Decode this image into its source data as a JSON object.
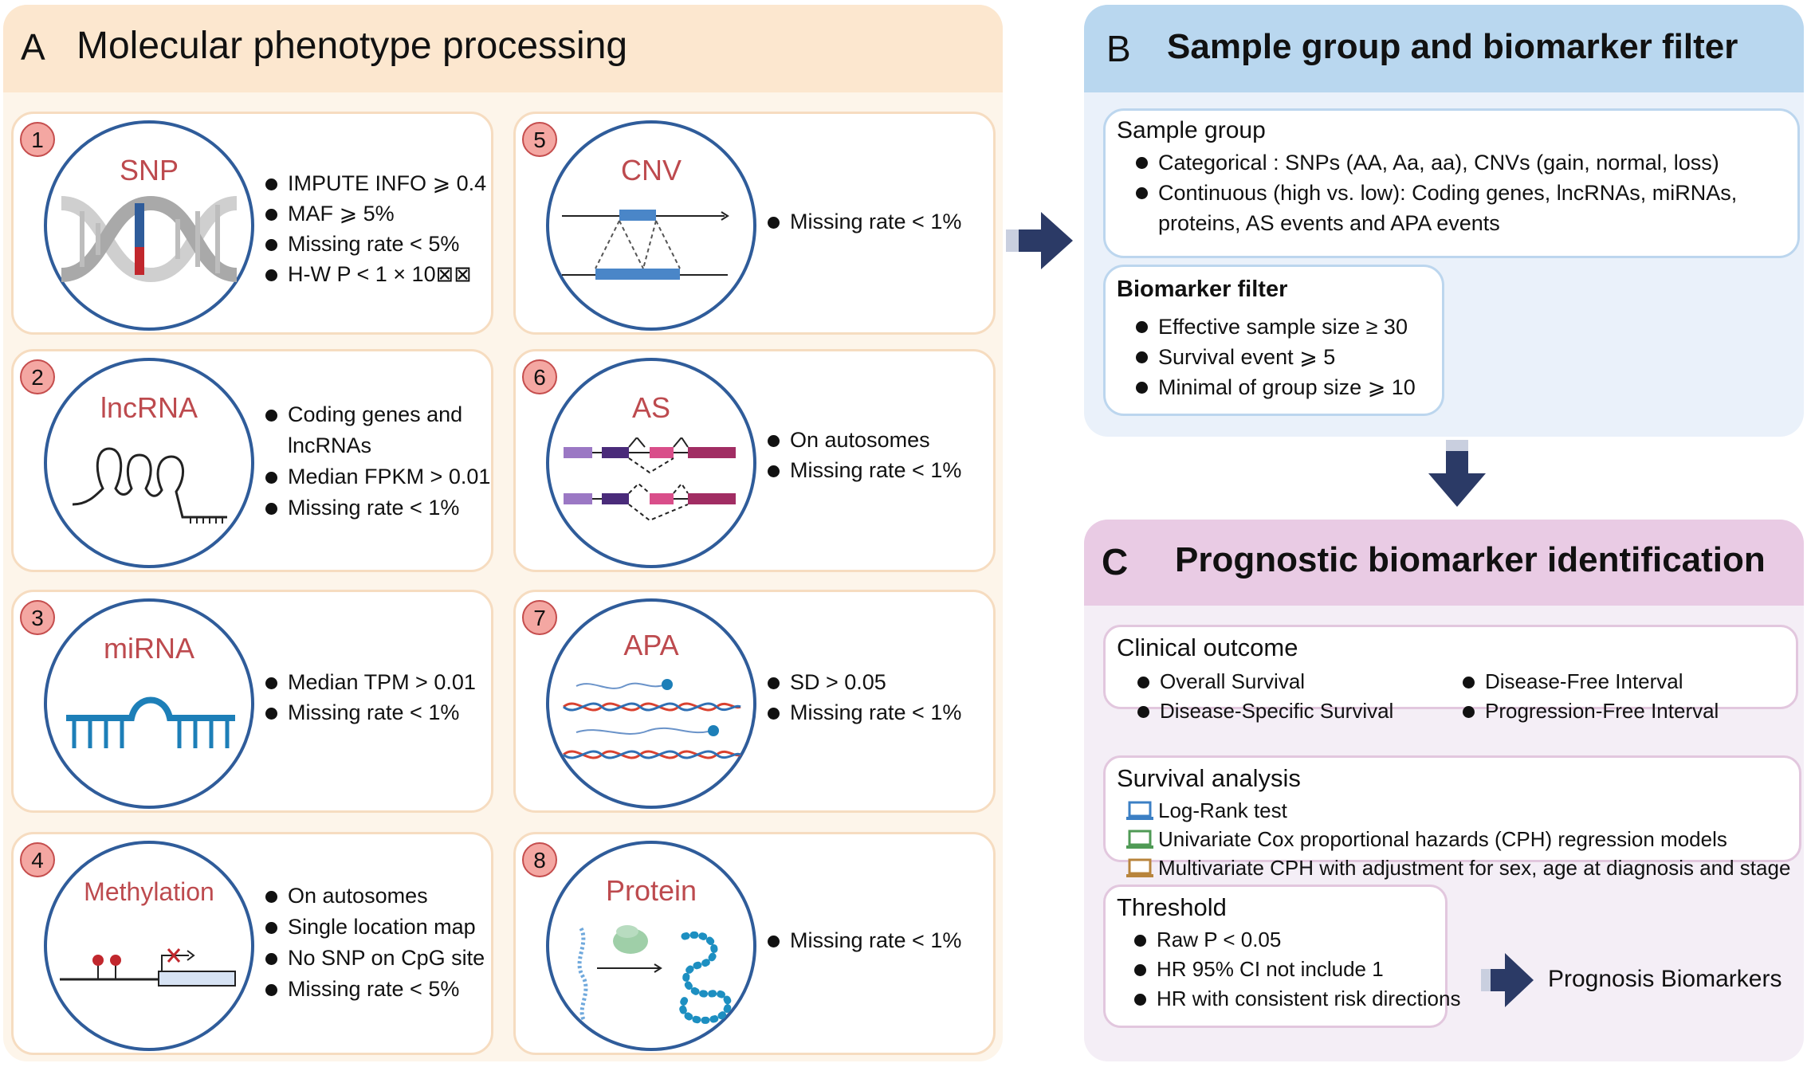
{
  "panel_a": {
    "letter": "A",
    "title": "Molecular phenotype processing",
    "cards": [
      {
        "num": "1",
        "label": "SNP",
        "bullets": [
          "IMPUTE INFO ⩾ 0.4",
          "MAF ⩾ 5%",
          "Missing rate < 5%",
          "H-W  P < 1 × 10⊠⊠"
        ]
      },
      {
        "num": "2",
        "label": "lncRNA",
        "bullets": [
          "Coding genes and",
          "lncRNAs",
          "Median FPKM > 0.01",
          "Missing rate < 1%"
        ]
      },
      {
        "num": "3",
        "label": "miRNA",
        "bullets": [
          "Median TPM > 0.01",
          "Missing rate < 1%"
        ]
      },
      {
        "num": "4",
        "label": "Methylation",
        "bullets": [
          "On autosomes",
          "Single location map",
          "No SNP on CpG site",
          "Missing rate < 5%"
        ]
      },
      {
        "num": "5",
        "label": "CNV",
        "bullets": [
          "Missing rate < 1%"
        ]
      },
      {
        "num": "6",
        "label": "AS",
        "bullets": [
          "On autosomes",
          "Missing rate < 1%"
        ]
      },
      {
        "num": "7",
        "label": "APA",
        "bullets": [
          "SD > 0.05",
          "Missing rate < 1%"
        ]
      },
      {
        "num": "8",
        "label": "Protein",
        "bullets": [
          "Missing rate < 1%"
        ]
      }
    ]
  },
  "panel_b": {
    "letter": "B",
    "title": "Sample group and biomarker filter",
    "sample_group": {
      "title": "Sample group",
      "line1": "Categorical : SNPs (AA, Aa, aa), CNVs (gain, normal, loss)",
      "line2": "Continuous  (high vs. low): Coding genes, lncRNAs, miRNAs,",
      "line3": "proteins, AS events and APA events"
    },
    "biomarker_filter": {
      "title": "Biomarker filter",
      "bullets": [
        "Effective sample size ≥ 30",
        "Survival event ⩾ 5",
        "Minimal of group size ⩾ 10"
      ]
    }
  },
  "panel_c": {
    "letter": "C",
    "title": "Prognostic biomarker identification",
    "clinical_outcome": {
      "title": "Clinical outcome",
      "left": [
        "Overall Survival",
        "Disease-Specific Survival"
      ],
      "right": [
        "Disease-Free Interval",
        "Progression-Free Interval"
      ]
    },
    "survival_analysis": {
      "title": "Survival analysis",
      "items": [
        {
          "text": "Log-Rank test",
          "color": "#3b7fc4"
        },
        {
          "text": "Univariate Cox proportional hazards (CPH) regression models",
          "color": "#4f9a55"
        },
        {
          "text": "Multivariate CPH with adjustment for sex, age at diagnosis and stage",
          "color": "#b8843c"
        }
      ]
    },
    "threshold": {
      "title": "Threshold",
      "bullets": [
        "Raw  P < 0.05",
        "HR 95% CI  not include 1",
        "HR with consistent risk directions"
      ]
    },
    "result": "Prognosis Biomarkers"
  },
  "colors": {
    "arrow": "#2b3a66",
    "circle": "#2f5c9a",
    "label": "#bd4a4e"
  }
}
